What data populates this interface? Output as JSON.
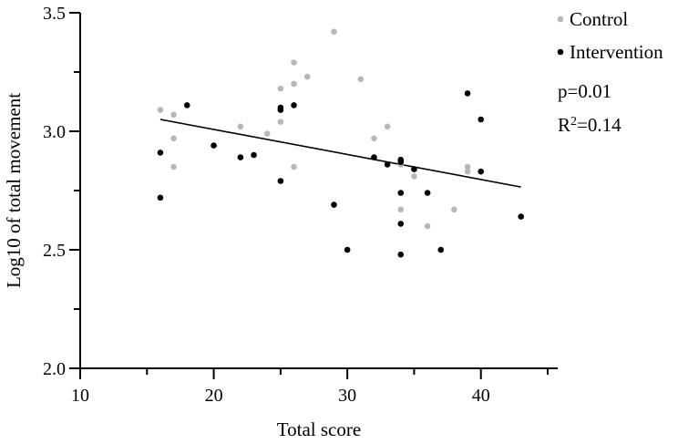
{
  "chart_data": {
    "type": "scatter",
    "xlabel": "Total score",
    "ylabel": "Log10 of total movement",
    "xlim": [
      10,
      45
    ],
    "ylim": [
      2.0,
      3.5
    ],
    "xticks": [
      10,
      20,
      30,
      40
    ],
    "xtick_labels": [
      "10",
      "20",
      "30",
      "40"
    ],
    "yticks": [
      2.0,
      2.5,
      3.0,
      3.5
    ],
    "ytick_labels": [
      "2.0",
      "2.5",
      "3.0",
      "3.5"
    ],
    "grid": false,
    "legend_position": "top-right",
    "series": [
      {
        "name": "Control",
        "color": "#b8b8b8",
        "points": [
          [
            16,
            3.09
          ],
          [
            17,
            3.07
          ],
          [
            17,
            2.97
          ],
          [
            17,
            2.85
          ],
          [
            22,
            3.02
          ],
          [
            24,
            2.99
          ],
          [
            25,
            3.18
          ],
          [
            25,
            3.04
          ],
          [
            26,
            3.29
          ],
          [
            26,
            3.2
          ],
          [
            26,
            2.85
          ],
          [
            27,
            3.23
          ],
          [
            29,
            3.42
          ],
          [
            31,
            3.22
          ],
          [
            32,
            2.97
          ],
          [
            33,
            3.02
          ],
          [
            33,
            2.86
          ],
          [
            34,
            2.86
          ],
          [
            34,
            2.67
          ],
          [
            35,
            2.81
          ],
          [
            36,
            2.6
          ],
          [
            38,
            2.67
          ],
          [
            39,
            2.85
          ],
          [
            39,
            2.83
          ]
        ]
      },
      {
        "name": "Intervention",
        "color": "#000000",
        "points": [
          [
            16,
            2.91
          ],
          [
            16,
            2.72
          ],
          [
            18,
            3.11
          ],
          [
            20,
            2.94
          ],
          [
            22,
            2.89
          ],
          [
            23,
            2.9
          ],
          [
            25,
            3.1
          ],
          [
            25,
            3.09
          ],
          [
            25,
            2.79
          ],
          [
            26,
            3.11
          ],
          [
            29,
            2.69
          ],
          [
            30,
            2.5
          ],
          [
            32,
            2.89
          ],
          [
            33,
            2.86
          ],
          [
            34,
            2.88
          ],
          [
            34,
            2.87
          ],
          [
            34,
            2.74
          ],
          [
            34,
            2.61
          ],
          [
            34,
            2.48
          ],
          [
            35,
            2.84
          ],
          [
            36,
            2.74
          ],
          [
            37,
            2.5
          ],
          [
            39,
            3.16
          ],
          [
            40,
            3.05
          ],
          [
            40,
            2.83
          ],
          [
            43,
            2.64
          ]
        ]
      }
    ],
    "regression_line": {
      "x": [
        16,
        43
      ],
      "y": [
        3.05,
        2.765
      ],
      "color": "#000000"
    },
    "annotations": {
      "p_text": "p=0.01",
      "r2_prefix": "R",
      "r2_sup": "2",
      "r2_value": "=0.14"
    }
  }
}
